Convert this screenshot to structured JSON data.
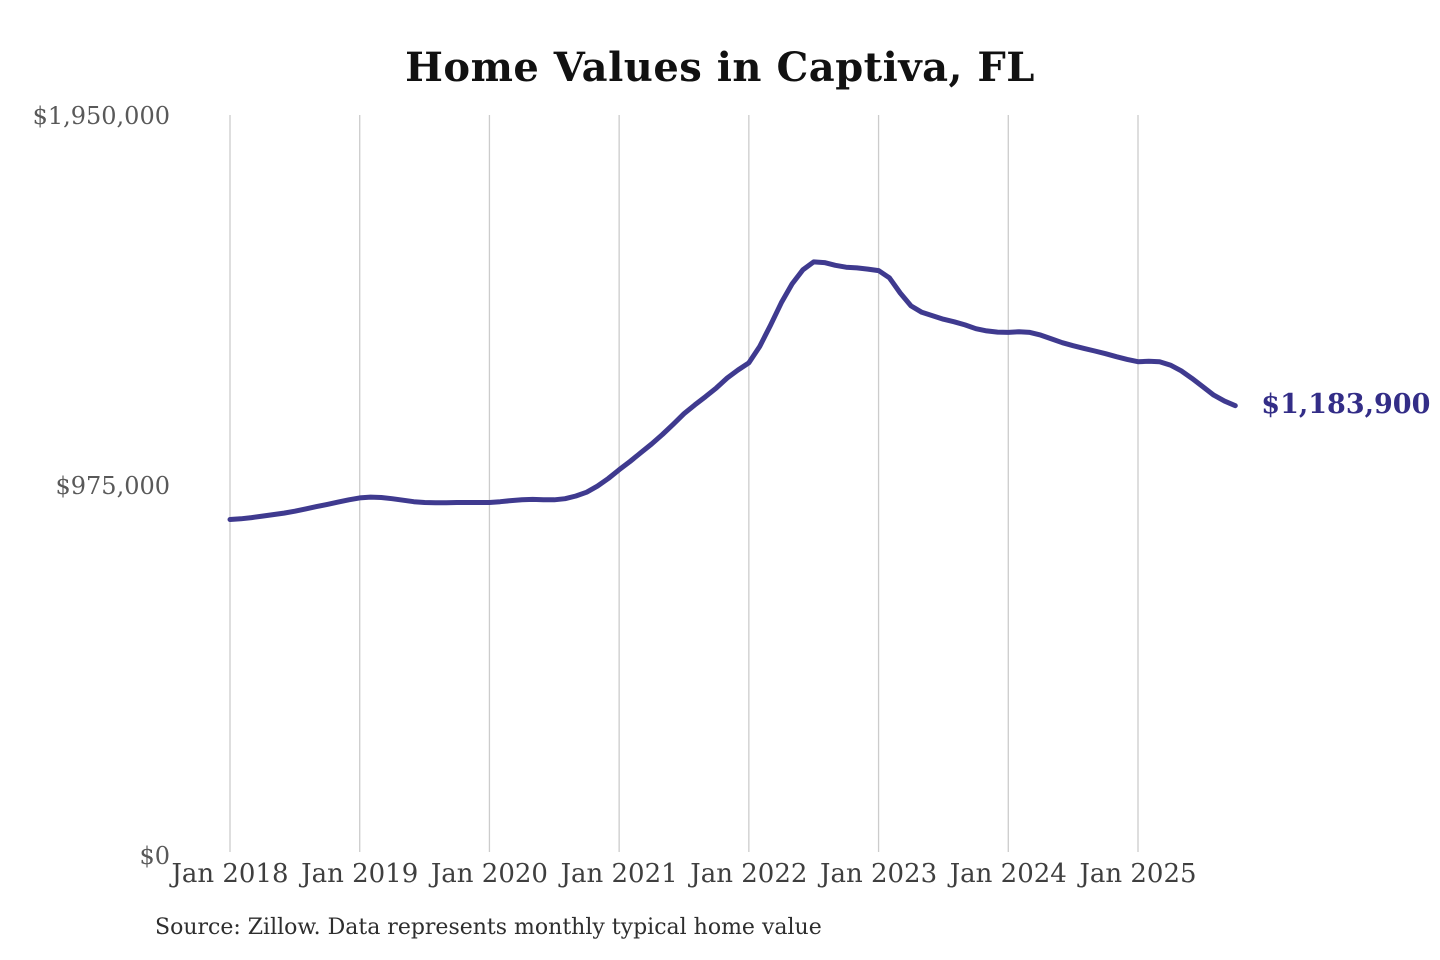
{
  "chart_data": {
    "type": "line",
    "title": "Home Values in Captiva, FL",
    "source_note": "Source: Zillow. Data represents monthly typical home value",
    "end_label": "$1,183,900",
    "end_value": 1183900,
    "xlabel": "",
    "ylabel": "",
    "ylim": [
      0,
      1950000
    ],
    "grid": "vertical-only",
    "legend": "none",
    "x_tick_every_months": 12,
    "x_tick_labels": [
      "Jan 2018",
      "Jan 2019",
      "Jan 2020",
      "Jan 2021",
      "Jan 2022",
      "Jan 2023",
      "Jan 2024",
      "Jan 2025"
    ],
    "y_ticks": [
      {
        "value": 1950000,
        "label": "$1,950,000"
      },
      {
        "value": 975000,
        "label": "$975,000"
      },
      {
        "value": 0,
        "label": "$0"
      }
    ],
    "x": [
      "2018-01",
      "2018-02",
      "2018-03",
      "2018-04",
      "2018-05",
      "2018-06",
      "2018-07",
      "2018-08",
      "2018-09",
      "2018-10",
      "2018-11",
      "2018-12",
      "2019-01",
      "2019-02",
      "2019-03",
      "2019-04",
      "2019-05",
      "2019-06",
      "2019-07",
      "2019-08",
      "2019-09",
      "2019-10",
      "2019-11",
      "2019-12",
      "2020-01",
      "2020-02",
      "2020-03",
      "2020-04",
      "2020-05",
      "2020-06",
      "2020-07",
      "2020-08",
      "2020-09",
      "2020-10",
      "2020-11",
      "2020-12",
      "2021-01",
      "2021-02",
      "2021-03",
      "2021-04",
      "2021-05",
      "2021-06",
      "2021-07",
      "2021-08",
      "2021-09",
      "2021-10",
      "2021-11",
      "2021-12",
      "2022-01",
      "2022-02",
      "2022-03",
      "2022-04",
      "2022-05",
      "2022-06",
      "2022-07",
      "2022-08",
      "2022-09",
      "2022-10",
      "2022-11",
      "2022-12",
      "2023-01",
      "2023-02",
      "2023-03",
      "2023-04",
      "2023-05",
      "2023-06",
      "2023-07",
      "2023-08",
      "2023-09",
      "2023-10",
      "2023-11",
      "2023-12",
      "2024-01",
      "2024-02",
      "2024-03",
      "2024-04",
      "2024-05",
      "2024-06",
      "2024-07",
      "2024-08",
      "2024-09",
      "2024-10",
      "2024-11",
      "2024-12",
      "2025-01",
      "2025-02",
      "2025-03",
      "2025-04",
      "2025-05",
      "2025-06",
      "2025-07",
      "2025-08",
      "2025-09",
      "2025-10"
    ],
    "series": [
      {
        "name": "Monthly typical home value",
        "values": [
          884000,
          886000,
          889000,
          893000,
          897000,
          901000,
          906000,
          912000,
          918000,
          924000,
          930000,
          936000,
          941000,
          943000,
          942000,
          939000,
          935000,
          931000,
          929000,
          928000,
          928000,
          929000,
          929000,
          929000,
          929000,
          931000,
          934000,
          936000,
          937000,
          936000,
          936000,
          939000,
          946000,
          956000,
          972000,
          992000,
          1015000,
          1037000,
          1060000,
          1083000,
          1108000,
          1135000,
          1163000,
          1186000,
          1208000,
          1231000,
          1257000,
          1278000,
          1297000,
          1340000,
          1396000,
          1455000,
          1505000,
          1542000,
          1563000,
          1561000,
          1554000,
          1549000,
          1547000,
          1544000,
          1540000,
          1521000,
          1481000,
          1447000,
          1430000,
          1421000,
          1412000,
          1405000,
          1397000,
          1387000,
          1381000,
          1378000,
          1377000,
          1379000,
          1377000,
          1370000,
          1360000,
          1350000,
          1342000,
          1335000,
          1328000,
          1321000,
          1313000,
          1306000,
          1300000,
          1301000,
          1300000,
          1291000,
          1276000,
          1256000,
          1234000,
          1212000,
          1196000,
          1183900
        ]
      }
    ],
    "colors": {
      "line": "#3f3a8f",
      "end_label": "#332d87",
      "grid": "#cccccc",
      "y_tick_text": "#595959",
      "x_tick_text": "#3f3f3f",
      "title": "#111111",
      "source": "#2e2e2e"
    }
  }
}
